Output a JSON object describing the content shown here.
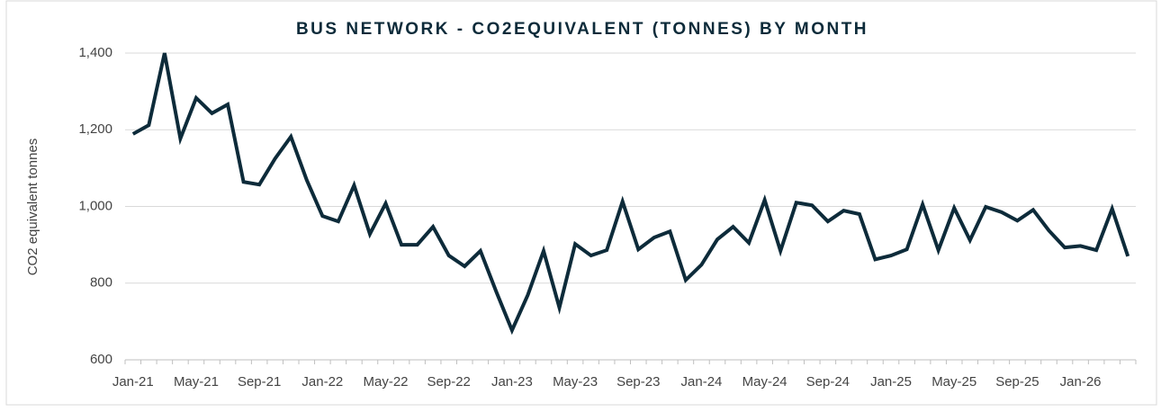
{
  "chart_data": {
    "type": "line",
    "title": "BUS NETWORK - CO2EQUIVALENT (TONNES) BY MONTH",
    "y_label": "CO2 equivalent tonnes",
    "categories": [
      "Jan-21",
      null,
      null,
      null,
      "May-21",
      null,
      null,
      null,
      "Sep-21",
      null,
      null,
      null,
      "Jan-22",
      null,
      null,
      null,
      "May-22",
      null,
      null,
      null,
      "Sep-22",
      null,
      null,
      null,
      "Jan-23",
      null,
      null,
      null,
      "May-23",
      null,
      null,
      null,
      "Sep-23",
      null,
      null,
      null,
      "Jan-24",
      null,
      null,
      null,
      "May-24",
      null,
      null,
      null,
      "Sep-24",
      null,
      null,
      null,
      "Jan-25",
      null,
      null,
      null,
      "May-25",
      null,
      null,
      null,
      "Sep-25",
      null,
      null,
      null,
      "Jan-26",
      null,
      null,
      null
    ],
    "values": [
      1189,
      1212,
      1400,
      1177,
      1283,
      1243,
      1266,
      1064,
      1057,
      1125,
      1182,
      1069,
      975,
      961,
      1055,
      928,
      1008,
      900,
      900,
      947,
      872,
      844,
      884,
      778,
      677,
      769,
      884,
      736,
      902,
      872,
      886,
      1013,
      888,
      919,
      935,
      808,
      848,
      914,
      947,
      905,
      1017,
      884,
      1010,
      1003,
      961,
      989,
      980,
      862,
      872,
      888,
      1005,
      886,
      996,
      912,
      999,
      985,
      963,
      991,
      937,
      893,
      897,
      886,
      994,
      870
    ],
    "color": "#0d2b3a",
    "ylim": [
      600,
      1400
    ],
    "yticks": [
      600,
      800,
      {
        "value": 1000,
        "label": "1,000"
      },
      {
        "value": 1200,
        "label": "1,200"
      },
      {
        "value": 1400,
        "label": "1,400"
      }
    ],
    "grid": true
  }
}
